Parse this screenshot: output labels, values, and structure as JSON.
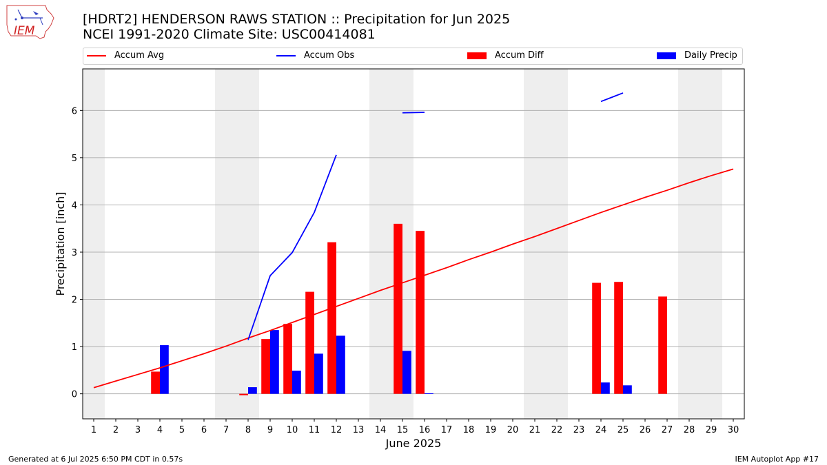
{
  "header": {
    "title_line1": "[HDRT2] HENDERSON RAWS STATION :: Precipitation for Jun 2025",
    "title_line2": "NCEI 1991-2020 Climate Site: USC00414081",
    "logo_text": "IEM"
  },
  "legend": {
    "accum_avg": "Accum Avg",
    "accum_obs": "Accum Obs",
    "accum_diff": "Accum Diff",
    "daily_precip": "Daily Precip"
  },
  "colors": {
    "accum_avg": "#ff0000",
    "accum_obs": "#0000ff",
    "accum_diff": "#ff0000",
    "daily_precip": "#0000ff",
    "weekend_shade": "#eeeeee",
    "grid": "#b0b0b0"
  },
  "footer": {
    "generated": "Generated at 6 Jul 2025 6:50 PM CDT in 0.57s",
    "app": "IEM Autoplot App #17"
  },
  "chart_data": {
    "type": "bar",
    "xlabel": "June 2025",
    "ylabel": "Precipitation [inch]",
    "xlim": [
      0.5,
      30.5
    ],
    "ylim": [
      -0.53,
      6.88
    ],
    "yticks": [
      0,
      1,
      2,
      3,
      4,
      5,
      6
    ],
    "categories": [
      1,
      2,
      3,
      4,
      5,
      6,
      7,
      8,
      9,
      10,
      11,
      12,
      13,
      14,
      15,
      16,
      17,
      18,
      19,
      20,
      21,
      22,
      23,
      24,
      25,
      26,
      27,
      28,
      29,
      30
    ],
    "weekend_shading": [
      [
        0.5,
        1.5
      ],
      [
        6.5,
        8.5
      ],
      [
        13.5,
        15.5
      ],
      [
        20.5,
        22.5
      ],
      [
        27.5,
        29.5
      ]
    ],
    "grid": "horizontal",
    "legend_position": "top",
    "accum_avg": {
      "days": [
        1,
        2,
        3,
        4,
        5,
        6,
        7,
        8,
        9,
        10,
        11,
        12,
        13,
        14,
        15,
        16,
        17,
        18,
        19,
        20,
        21,
        22,
        23,
        24,
        25,
        26,
        27,
        28,
        29,
        30
      ],
      "values": [
        0.13,
        0.27,
        0.41,
        0.55,
        0.7,
        0.85,
        1.01,
        1.18,
        1.34,
        1.51,
        1.68,
        1.85,
        2.02,
        2.19,
        2.35,
        2.51,
        2.67,
        2.84,
        3.0,
        3.17,
        3.33,
        3.5,
        3.67,
        3.84,
        4.0,
        4.16,
        4.31,
        4.47,
        4.62,
        4.76
      ]
    },
    "accum_obs": [
      {
        "days": [
          8,
          9,
          10,
          11,
          12
        ],
        "values": [
          1.14,
          2.5,
          2.99,
          3.84,
          5.06
        ]
      },
      {
        "days": [
          15,
          16
        ],
        "values": [
          5.95,
          5.96
        ]
      },
      {
        "days": [
          24,
          25
        ],
        "values": [
          6.19,
          6.37
        ]
      }
    ],
    "accum_diff": [
      {
        "day": 4,
        "value": 0.47
      },
      {
        "day": 8,
        "value": -0.03
      },
      {
        "day": 9,
        "value": 1.16
      },
      {
        "day": 10,
        "value": 1.48
      },
      {
        "day": 11,
        "value": 2.16
      },
      {
        "day": 12,
        "value": 3.21
      },
      {
        "day": 15,
        "value": 3.6
      },
      {
        "day": 16,
        "value": 3.45
      },
      {
        "day": 24,
        "value": 2.35
      },
      {
        "day": 25,
        "value": 2.37
      },
      {
        "day": 27,
        "value": 2.06
      }
    ],
    "daily_precip": [
      {
        "day": 4,
        "value": 1.03
      },
      {
        "day": 8,
        "value": 0.14
      },
      {
        "day": 9,
        "value": 1.35
      },
      {
        "day": 10,
        "value": 0.49
      },
      {
        "day": 11,
        "value": 0.85
      },
      {
        "day": 12,
        "value": 1.23
      },
      {
        "day": 15,
        "value": 0.91
      },
      {
        "day": 16,
        "value": 0.01
      },
      {
        "day": 24,
        "value": 0.24
      },
      {
        "day": 25,
        "value": 0.18
      }
    ]
  }
}
